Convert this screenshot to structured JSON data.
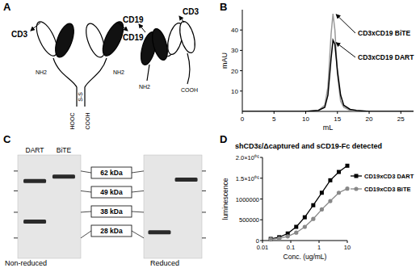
{
  "panels": [
    "A",
    "B",
    "C",
    "D"
  ],
  "diagram": {
    "dart": {
      "target_left": "CD3",
      "target_right": "CD19",
      "n_term_left": "NH2",
      "n_term_right": "NH2",
      "disulfide": "S-S",
      "c_term_left": "HOOC",
      "c_term_right": "COOH"
    },
    "bite": {
      "target_left": "CD19",
      "target_right": "CD3",
      "n_term": "NH2",
      "c_term": "COOH"
    }
  },
  "chart_data": [
    {
      "type": "line",
      "x_label": "mL",
      "y_label": "mAU",
      "x": [
        0,
        2,
        4,
        6,
        8,
        10,
        12,
        13,
        13.5,
        14,
        14.3,
        14.6,
        15,
        15.5,
        16,
        17,
        18,
        20,
        22,
        24,
        26,
        27
      ],
      "series": [
        {
          "name": "CD3xCD19 BiTE",
          "color": "#999999",
          "values": [
            0,
            0,
            0,
            0,
            0,
            0,
            0.5,
            3,
            12,
            38,
            48,
            40,
            18,
            5,
            2,
            0.5,
            0,
            0,
            0,
            0,
            0,
            0
          ]
        },
        {
          "name": "CD3xCD19 DART",
          "color": "#000000",
          "values": [
            0,
            0,
            0,
            0,
            0,
            0,
            0.5,
            2,
            8,
            26,
            35,
            33,
            20,
            8,
            3,
            1,
            0.5,
            0,
            0,
            0,
            0,
            0
          ]
        }
      ],
      "xlim": [
        0,
        27
      ],
      "ylim": [
        0,
        50
      ],
      "xticks": [
        0,
        5,
        10,
        15,
        20,
        25
      ],
      "yticks": [
        10,
        20,
        30,
        40
      ]
    },
    {
      "type": "line",
      "title": "shCD3ε/Δcaptured and sCD19-Fc detected",
      "x_label": "Conc. (ug/mL)",
      "y_label": "luminescence",
      "log": "x",
      "x": [
        0.0195,
        0.039,
        0.078,
        0.156,
        0.3125,
        0.625,
        1.25,
        2.5,
        5,
        10
      ],
      "series": [
        {
          "name": "CD19xCD3 DART",
          "color": "#000000",
          "marker": "square",
          "values": [
            40000,
            80000,
            170000,
            330000,
            560000,
            850000,
            1150000,
            1450000,
            1650000,
            1800000
          ]
        },
        {
          "name": "CD19xCD3 BiTE",
          "color": "#888888",
          "marker": "circle",
          "values": [
            25000,
            50000,
            100000,
            190000,
            330000,
            520000,
            750000,
            950000,
            1150000,
            1250000
          ]
        }
      ],
      "xlim": [
        0.01,
        10
      ],
      "ylim": [
        0,
        2000000
      ],
      "xticks": [
        0.01,
        0.1,
        1,
        10
      ],
      "yticks": [
        0,
        500000,
        1000000,
        {
          "value": 1500000,
          "label": "1.5×10⁰⁶"
        },
        {
          "value": 2000000,
          "label": "2.0×10⁰⁶"
        }
      ],
      "legend": "right"
    }
  ],
  "gel": {
    "lanes": [
      "DART",
      "BiTE"
    ],
    "kda_range": [
      22,
      75
    ],
    "markers": [
      {
        "value": 62,
        "label": "62 kDa"
      },
      {
        "value": 49,
        "label": "49 kDa"
      },
      {
        "value": 38,
        "label": "38 kDa"
      },
      {
        "value": 28,
        "label": "28 kDa"
      }
    ],
    "gels": [
      {
        "label": "Non-reduced",
        "bands": [
          {
            "lane": 0,
            "kda": 55
          },
          {
            "lane": 0,
            "kda": 34
          },
          {
            "lane": 1,
            "kda": 58
          }
        ]
      },
      {
        "label": "Reduced",
        "bands": [
          {
            "lane": 0,
            "kda": 30
          },
          {
            "lane": 1,
            "kda": 56
          }
        ]
      }
    ]
  }
}
